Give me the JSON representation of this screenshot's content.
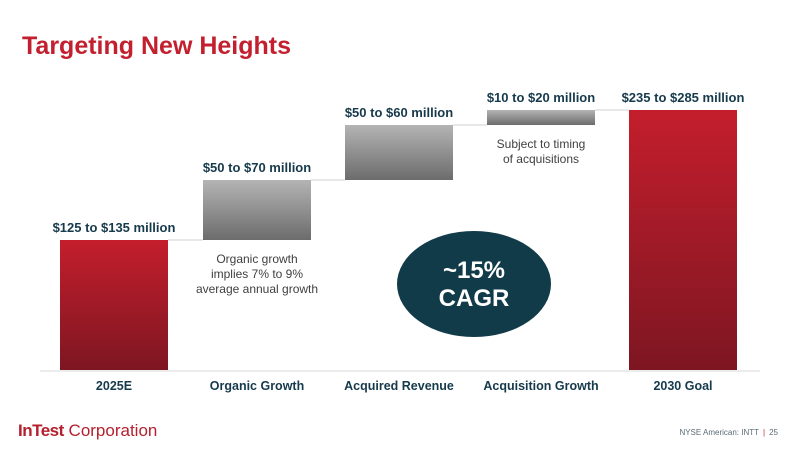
{
  "title": "Targeting New Heights",
  "logo": {
    "brand": "InTest",
    "suffix": " Corporation"
  },
  "footer": {
    "exchange": "NYSE American: INTT",
    "separator": "|",
    "page": "25"
  },
  "colors": {
    "title": "#c3202f",
    "ellipse": "#123b4a",
    "label": "#163a4c",
    "note": "#404040"
  },
  "cagr": {
    "line1": "~15%",
    "line2": "CAGR"
  },
  "chart_data": {
    "type": "bar",
    "subtype": "waterfall",
    "unit": "$ million",
    "categories": [
      "2025E",
      "Organic Growth",
      "Acquired Revenue",
      "Acquisition Growth",
      "2030 Goal"
    ],
    "value_labels": [
      "$125 to $135 million",
      "$50 to $70 million",
      "$50 to $60 million",
      "$10 to $20 million",
      "$235 to $285 million"
    ],
    "ranges": [
      [
        125,
        135
      ],
      [
        50,
        70
      ],
      [
        50,
        60
      ],
      [
        10,
        20
      ],
      [
        235,
        285
      ]
    ],
    "bars": [
      {
        "kind": "total",
        "start": 0,
        "end": 130
      },
      {
        "kind": "increment",
        "start": 130,
        "end": 190
      },
      {
        "kind": "increment",
        "start": 190,
        "end": 245
      },
      {
        "kind": "increment",
        "start": 245,
        "end": 260
      },
      {
        "kind": "total",
        "start": 0,
        "end": 260
      }
    ],
    "annotations": [
      {
        "bar": 1,
        "lines": [
          "Organic growth",
          "implies 7% to 9%",
          "average annual growth"
        ]
      },
      {
        "bar": 3,
        "lines": [
          "Subject to timing",
          "of acquisitions"
        ]
      }
    ],
    "title": "",
    "xlabel": "",
    "ylabel": "",
    "ylim": [
      0,
      260
    ],
    "grid": false,
    "legend": "none"
  }
}
